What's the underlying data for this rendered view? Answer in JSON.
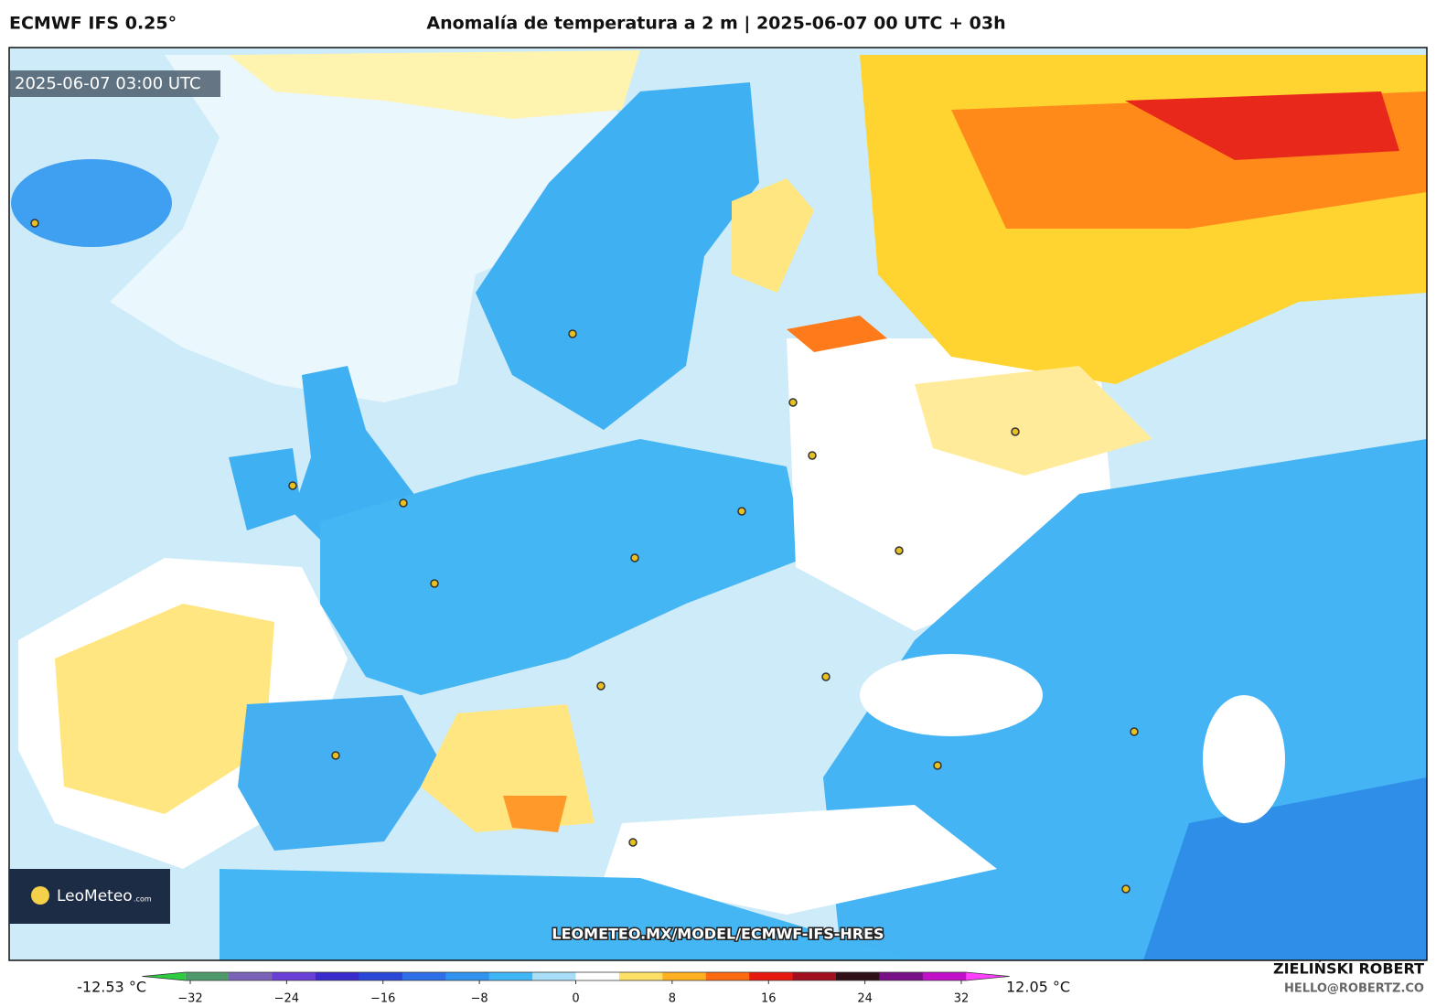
{
  "header": {
    "model": "ECMWF IFS 0.25°",
    "title": "Anomalía de temperatura a 2 m | 2025-06-07 00 UTC + 03h"
  },
  "map": {
    "valid_time": "2025-06-07 03:00 UTC",
    "logo_name": "LeoMeteo",
    "logo_domain": ".com",
    "watermark": "LEOMETEO.MX/MODEL/ECMWF-IFS-HRES"
  },
  "colorbar": {
    "min_label": "-12.53 °C",
    "max_label": "12.05 °C",
    "lim": [
      -36,
      36
    ],
    "ticks": [
      {
        "value": -32,
        "label": "−32"
      },
      {
        "value": -24,
        "label": "−24"
      },
      {
        "value": -16,
        "label": "−16"
      },
      {
        "value": -8,
        "label": "−8"
      },
      0,
      8,
      16,
      24,
      32
    ],
    "colors": [
      "#2ecc40",
      "#4f9a6a",
      "#7a62b8",
      "#6a3fd6",
      "#3a2bcc",
      "#2a48d8",
      "#2f6fe8",
      "#2f93ef",
      "#3fb6f5",
      "#a8def7",
      "#ffffff",
      "#ffe066",
      "#ffb020",
      "#ff6a10",
      "#e81a10",
      "#a0101e",
      "#301018",
      "#7a1088",
      "#c010c8",
      "#ff40ff"
    ]
  },
  "credit": {
    "name": "ZIELIŃSKI ROBERT",
    "email": "HELLO@ROBERTZ.CO"
  }
}
